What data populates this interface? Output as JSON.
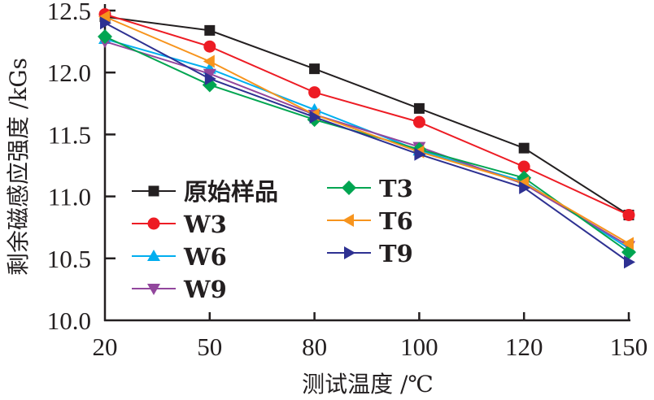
{
  "chart_data": {
    "type": "line",
    "title": "",
    "xlabel": "测试温度 /℃",
    "ylabel": "剩余磁感应强度 /kGs",
    "categories": [
      "20",
      "50",
      "80",
      "100",
      "120",
      "150"
    ],
    "ylim": [
      10.0,
      12.5
    ],
    "yticks": [
      "10.0",
      "10.5",
      "11.0",
      "11.5",
      "12.0",
      "12.5"
    ],
    "yticks_values": [
      10.0,
      10.5,
      11.0,
      11.5,
      12.0,
      12.5
    ],
    "grid": false,
    "legend_position": "lower-left (two columns)",
    "series": [
      {
        "name": "原始样品",
        "color": "#231f20",
        "marker": "square",
        "values": [
          12.45,
          12.34,
          12.03,
          11.71,
          11.39,
          10.85
        ]
      },
      {
        "name": "W3",
        "color": "#ed1c24",
        "marker": "circle",
        "values": [
          12.47,
          12.21,
          11.84,
          11.6,
          11.24,
          10.85
        ]
      },
      {
        "name": "W6",
        "color": "#00aeef",
        "marker": "triangle-up",
        "values": [
          12.27,
          12.03,
          11.7,
          11.37,
          11.12,
          10.58
        ]
      },
      {
        "name": "W9",
        "color": "#92479d",
        "marker": "triangle-down",
        "values": [
          12.25,
          11.99,
          11.66,
          11.4,
          11.1,
          10.6
        ]
      },
      {
        "name": "T3",
        "color": "#00a551",
        "marker": "diamond",
        "values": [
          12.29,
          11.9,
          11.62,
          11.38,
          11.15,
          10.55
        ]
      },
      {
        "name": "T6",
        "color": "#f7941d",
        "marker": "triangle-left",
        "values": [
          12.45,
          12.09,
          11.66,
          11.36,
          11.11,
          10.62
        ]
      },
      {
        "name": "T9",
        "color": "#2e3192",
        "marker": "triangle-right",
        "values": [
          12.4,
          11.95,
          11.64,
          11.34,
          11.07,
          10.47
        ]
      }
    ]
  }
}
